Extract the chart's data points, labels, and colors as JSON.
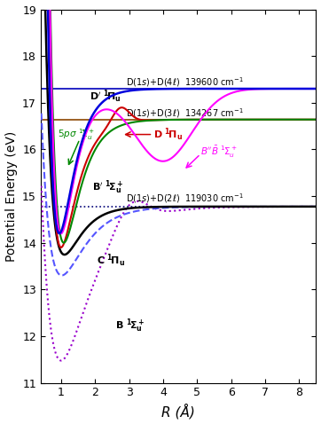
{
  "xlabel": "R (Å)",
  "ylabel": "Potential Energy (eV)",
  "xlim": [
    0.4,
    8.5
  ],
  "ylim": [
    11.0,
    19.0
  ],
  "yticks": [
    11,
    12,
    13,
    14,
    15,
    16,
    17,
    18,
    19
  ],
  "xticks": [
    1,
    2,
    3,
    4,
    5,
    6,
    7,
    8
  ],
  "bg_color": "#ffffff",
  "E_D4l": 17.3,
  "E_D3l": 16.64,
  "E_D2l": 14.775,
  "label_D4l": "D(1s)+D(4ℓ)  139600 cm⁻¹",
  "label_D3l": "D(1s)+D(3ℓ)  134267 cm⁻¹",
  "label_D2l": "D(1s)+D(2ℓ)  119030 cm⁻¹",
  "color_Dprime": "#0000dd",
  "color_5psigma": "#008800",
  "color_D": "#cc0000",
  "color_BdblBbar": "#ff00ff",
  "color_Bprime": "#000000",
  "color_C": "#5555ff",
  "color_B": "#9900cc",
  "color_D3l_line": "#8B4500",
  "color_D4l_line": "#0000bb",
  "color_D2l_line": "#000077"
}
